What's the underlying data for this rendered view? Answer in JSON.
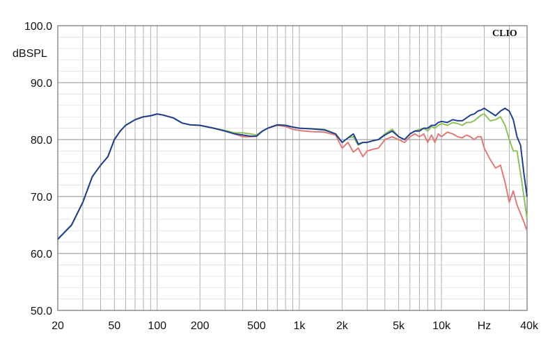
{
  "chart_data": {
    "type": "line",
    "brand": "CLIO",
    "ylabel": "dBSPL",
    "xscale": "log",
    "xlim": [
      20,
      40000
    ],
    "ylim": [
      50,
      100
    ],
    "grid": true,
    "y_ticks": [
      {
        "value": 100,
        "label": "100.0"
      },
      {
        "value": 90,
        "label": "90.0"
      },
      {
        "value": 80,
        "label": "80.0"
      },
      {
        "value": 70,
        "label": "70.0"
      },
      {
        "value": 60,
        "label": "60.0"
      },
      {
        "value": 50,
        "label": "50.0"
      }
    ],
    "x_ticks": [
      {
        "value": 20,
        "label": "20"
      },
      {
        "value": 50,
        "label": "50"
      },
      {
        "value": 100,
        "label": "100"
      },
      {
        "value": 200,
        "label": "200"
      },
      {
        "value": 500,
        "label": "500"
      },
      {
        "value": 1000,
        "label": "1k"
      },
      {
        "value": 2000,
        "label": "2k"
      },
      {
        "value": 5000,
        "label": "5k"
      },
      {
        "value": 10000,
        "label": "10k"
      },
      {
        "value": 20000,
        "label": "Hz"
      },
      {
        "value": 40000,
        "label": "40k"
      }
    ],
    "series": [
      {
        "color": "#e07a78",
        "x": [
          20,
          25,
          30,
          35,
          40,
          45,
          50,
          55,
          60,
          70,
          80,
          90,
          100,
          110,
          130,
          150,
          170,
          200,
          250,
          300,
          350,
          400,
          450,
          500,
          550,
          600,
          700,
          800,
          900,
          1000,
          1200,
          1500,
          1800,
          2000,
          2200,
          2400,
          2600,
          2800,
          3000,
          3300,
          3600,
          4000,
          4500,
          5000,
          5500,
          6000,
          6500,
          7000,
          7500,
          8000,
          8500,
          9000,
          9500,
          10000,
          11000,
          12000,
          13000,
          14000,
          15000,
          16000,
          17000,
          18000,
          19000,
          20000,
          22000,
          24000,
          26000,
          28000,
          30000,
          32000,
          34000,
          36000,
          38000,
          40000
        ],
        "y": [
          62.5,
          65,
          69,
          73.5,
          75.5,
          77,
          80,
          81.5,
          82.5,
          83.5,
          84,
          84.2,
          84.5,
          84.3,
          83.8,
          82.9,
          82.6,
          82.5,
          82,
          81.5,
          81,
          80.5,
          80.5,
          80.6,
          81.5,
          82,
          82.5,
          82.3,
          81.8,
          81.6,
          81.4,
          81.3,
          80.8,
          78.5,
          79.5,
          77.8,
          78.5,
          77,
          78,
          78.3,
          78.5,
          80,
          80.5,
          80,
          79.5,
          80.5,
          81,
          80.5,
          81,
          79.5,
          80.8,
          79.5,
          81,
          80.5,
          81.3,
          81,
          80.5,
          80.3,
          80.8,
          80.5,
          80,
          80.5,
          80.5,
          78.5,
          76.5,
          75,
          75.5,
          72.5,
          69,
          71,
          68.5,
          67,
          65.5,
          64
        ]
      },
      {
        "color": "#8fc05a",
        "x": [
          20,
          25,
          30,
          35,
          40,
          45,
          50,
          55,
          60,
          70,
          80,
          90,
          100,
          110,
          130,
          150,
          170,
          200,
          250,
          300,
          350,
          400,
          450,
          500,
          550,
          600,
          700,
          800,
          900,
          1000,
          1200,
          1500,
          1800,
          2000,
          2200,
          2400,
          2600,
          2800,
          3000,
          3300,
          3600,
          4000,
          4500,
          5000,
          5500,
          6000,
          6500,
          7000,
          7500,
          8000,
          8500,
          9000,
          9500,
          10000,
          11000,
          12000,
          13000,
          14000,
          15000,
          16000,
          17000,
          18000,
          19000,
          20000,
          22000,
          24000,
          26000,
          28000,
          30000,
          32000,
          34000,
          36000,
          38000,
          40000
        ],
        "y": [
          62.5,
          65,
          69,
          73.5,
          75.5,
          77,
          80,
          81.5,
          82.5,
          83.5,
          84,
          84.2,
          84.5,
          84.3,
          83.8,
          82.9,
          82.6,
          82.5,
          82,
          81.6,
          81.2,
          81.2,
          81,
          80.8,
          81.5,
          82,
          82.6,
          82.5,
          82.2,
          82,
          81.9,
          81.8,
          81,
          79.5,
          80.3,
          80.5,
          79,
          79.5,
          79.5,
          79.8,
          80,
          81,
          81.8,
          80.5,
          80,
          81,
          81.5,
          81.8,
          82,
          81.5,
          82.3,
          82,
          82.5,
          82.8,
          82.5,
          83,
          82.8,
          82.5,
          83,
          83,
          83.3,
          83.8,
          84.3,
          84.5,
          83.3,
          83.5,
          84,
          82.5,
          80,
          78,
          78,
          74,
          70,
          66
        ]
      },
      {
        "color": "#1f3f8f",
        "x": [
          20,
          25,
          30,
          35,
          40,
          45,
          50,
          55,
          60,
          70,
          80,
          90,
          100,
          110,
          130,
          150,
          170,
          200,
          250,
          300,
          350,
          400,
          450,
          500,
          550,
          600,
          700,
          800,
          900,
          1000,
          1200,
          1500,
          1800,
          2000,
          2200,
          2400,
          2600,
          2800,
          3000,
          3300,
          3600,
          4000,
          4500,
          5000,
          5500,
          6000,
          6500,
          7000,
          7500,
          8000,
          8500,
          9000,
          9500,
          10000,
          11000,
          12000,
          13000,
          14000,
          15000,
          16000,
          17000,
          18000,
          19000,
          20000,
          22000,
          24000,
          26000,
          28000,
          30000,
          32000,
          34000,
          36000,
          38000,
          40000
        ],
        "y": [
          62.5,
          65,
          69,
          73.5,
          75.5,
          77,
          80,
          81.5,
          82.5,
          83.5,
          84,
          84.2,
          84.5,
          84.3,
          83.8,
          82.9,
          82.6,
          82.5,
          82,
          81.5,
          81,
          80.8,
          80.6,
          80.6,
          81.5,
          82,
          82.6,
          82.5,
          82.2,
          82,
          81.9,
          81.7,
          81,
          79.5,
          80.3,
          81,
          79.2,
          79.5,
          79.5,
          79.8,
          80,
          80.8,
          81.5,
          80.5,
          80,
          81,
          81.5,
          81.5,
          82,
          82,
          82.5,
          82.5,
          83,
          83.2,
          83,
          83.5,
          83.3,
          83.3,
          83.8,
          84.3,
          84.5,
          85,
          85.2,
          85.5,
          84.8,
          84.2,
          85,
          85.5,
          85,
          83.5,
          80.5,
          79,
          74,
          70
        ]
      }
    ]
  }
}
